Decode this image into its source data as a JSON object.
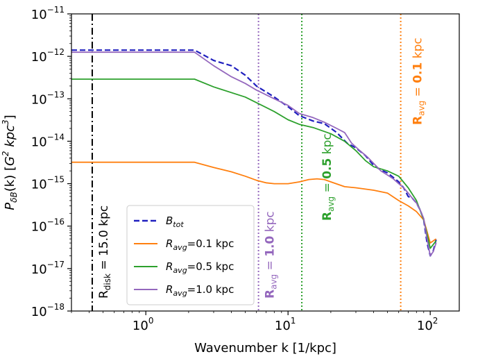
{
  "chart_data": {
    "type": "line",
    "xscale": "log",
    "yscale": "log",
    "xlim": [
      0.3,
      160
    ],
    "ylim": [
      1e-18,
      1e-11
    ],
    "xlabel": "Wavenumber k [1/kpc]",
    "ylabel": {
      "main": "P",
      "sub": "δB",
      "rest": "(k) [",
      "unit_a": "G",
      "unit_a_exp": "2",
      "unit_b": " kpc",
      "unit_b_exp": "3",
      "end": "]"
    },
    "x_ticks": [
      {
        "value": 1,
        "base": "10",
        "exp": "0"
      },
      {
        "value": 10,
        "base": "10",
        "exp": "1"
      },
      {
        "value": 100,
        "base": "10",
        "exp": "2"
      }
    ],
    "y_ticks": [
      {
        "value": 1e-11,
        "base": "10",
        "exp": "−11"
      },
      {
        "value": 1e-12,
        "base": "10",
        "exp": "−12"
      },
      {
        "value": 1e-13,
        "base": "10",
        "exp": "−13"
      },
      {
        "value": 1e-14,
        "base": "10",
        "exp": "−14"
      },
      {
        "value": 1e-15,
        "base": "10",
        "exp": "−15"
      },
      {
        "value": 1e-16,
        "base": "10",
        "exp": "−16"
      },
      {
        "value": 1e-17,
        "base": "10",
        "exp": "−17"
      },
      {
        "value": 1e-18,
        "base": "10",
        "exp": "−18"
      }
    ],
    "series": [
      {
        "name": "B_tot",
        "legend_main": "B",
        "legend_sub": "tot",
        "legend_rest": "",
        "color": "#1f1fbf",
        "dash": "8,4",
        "width": 2.2,
        "points": [
          [
            0.3,
            1.4e-12
          ],
          [
            2.2,
            1.4e-12
          ],
          [
            3,
            8e-13
          ],
          [
            4,
            6e-13
          ],
          [
            5,
            3.6e-13
          ],
          [
            6,
            2e-13
          ],
          [
            8,
            1.1e-13
          ],
          [
            10,
            6.5e-14
          ],
          [
            12,
            4e-14
          ],
          [
            15,
            3e-14
          ],
          [
            18,
            2.6e-14
          ],
          [
            22,
            1.6e-14
          ],
          [
            26,
            9e-15
          ],
          [
            30,
            7e-15
          ],
          [
            35,
            4.6e-15
          ],
          [
            40,
            2.7e-15
          ],
          [
            45,
            2.1e-15
          ],
          [
            50,
            1.8e-15
          ],
          [
            55,
            1.4e-15
          ],
          [
            60,
            1.1e-15
          ],
          [
            65,
            8e-16
          ],
          [
            70,
            5e-16
          ],
          [
            75,
            4.5e-16
          ],
          [
            80,
            3.5e-16
          ],
          [
            85,
            2.4e-16
          ],
          [
            90,
            1.4e-16
          ],
          [
            95,
            4e-17
          ],
          [
            100,
            2e-17
          ],
          [
            105,
            2.6e-17
          ],
          [
            110,
            4.8e-17
          ]
        ]
      },
      {
        "name": "R_avg=0.1 kpc",
        "legend_main": "R",
        "legend_sub": "avg",
        "legend_rest": "=0.1 kpc",
        "color": "#ff7f0e",
        "dash": "",
        "width": 1.8,
        "points": [
          [
            0.3,
            3.2e-15
          ],
          [
            2.2,
            3.2e-15
          ],
          [
            3,
            2.4e-15
          ],
          [
            4,
            1.9e-15
          ],
          [
            5,
            1.5e-15
          ],
          [
            6,
            1.2e-15
          ],
          [
            7,
            1.05e-15
          ],
          [
            8,
            1e-15
          ],
          [
            10,
            1e-15
          ],
          [
            12,
            1.1e-15
          ],
          [
            14,
            1.25e-15
          ],
          [
            16,
            1.3e-15
          ],
          [
            18,
            1.25e-15
          ],
          [
            20,
            1.1e-15
          ],
          [
            25,
            8.5e-16
          ],
          [
            30,
            8e-16
          ],
          [
            40,
            7e-16
          ],
          [
            50,
            6e-16
          ],
          [
            60,
            4e-16
          ],
          [
            70,
            3e-16
          ],
          [
            80,
            2.2e-16
          ],
          [
            90,
            1.4e-16
          ],
          [
            100,
            4e-17
          ],
          [
            110,
            5e-17
          ]
        ]
      },
      {
        "name": "R_avg=0.5 kpc",
        "legend_main": "R",
        "legend_sub": "avg",
        "legend_rest": "=0.5 kpc",
        "color": "#2ca02c",
        "dash": "",
        "width": 1.8,
        "points": [
          [
            0.3,
            2.9e-13
          ],
          [
            2.2,
            2.9e-13
          ],
          [
            3,
            1.9e-13
          ],
          [
            5,
            1.1e-13
          ],
          [
            8,
            5e-14
          ],
          [
            10,
            3.2e-14
          ],
          [
            12,
            2.5e-14
          ],
          [
            15,
            2.1e-14
          ],
          [
            20,
            1.5e-14
          ],
          [
            25,
            1e-14
          ],
          [
            30,
            6e-15
          ],
          [
            35,
            3.5e-15
          ],
          [
            40,
            2.5e-15
          ],
          [
            50,
            2e-15
          ],
          [
            60,
            1.5e-15
          ],
          [
            70,
            8e-16
          ],
          [
            80,
            4e-16
          ],
          [
            90,
            1.4e-16
          ],
          [
            100,
            3e-17
          ],
          [
            110,
            4.5e-17
          ]
        ]
      },
      {
        "name": "R_avg=1.0 kpc",
        "legend_main": "R",
        "legend_sub": "avg",
        "legend_rest": "=1.0 kpc",
        "color": "#9467bd",
        "dash": "",
        "width": 1.8,
        "points": [
          [
            0.3,
            1.25e-12
          ],
          [
            2.2,
            1.25e-12
          ],
          [
            3,
            6e-13
          ],
          [
            4,
            3.3e-13
          ],
          [
            5,
            2.3e-13
          ],
          [
            6,
            1.6e-13
          ],
          [
            8,
            1e-13
          ],
          [
            10,
            7e-14
          ],
          [
            12,
            4.5e-14
          ],
          [
            15,
            3.6e-14
          ],
          [
            18,
            2.8e-14
          ],
          [
            22,
            2e-14
          ],
          [
            25,
            1.6e-14
          ],
          [
            28,
            9e-15
          ],
          [
            32,
            6e-15
          ],
          [
            36,
            4.3e-15
          ],
          [
            40,
            3e-15
          ],
          [
            45,
            2e-15
          ],
          [
            50,
            1.6e-15
          ],
          [
            55,
            1.3e-15
          ],
          [
            60,
            1e-15
          ],
          [
            65,
            8e-16
          ],
          [
            70,
            6e-16
          ],
          [
            75,
            4.5e-16
          ],
          [
            80,
            3.5e-16
          ],
          [
            85,
            2.4e-16
          ],
          [
            90,
            1.5e-16
          ],
          [
            95,
            5e-17
          ],
          [
            100,
            2e-17
          ],
          [
            105,
            2.5e-17
          ],
          [
            110,
            4e-17
          ]
        ]
      }
    ],
    "vlines": [
      {
        "x": 0.42,
        "color": "#000000",
        "dash": "10,4,2,4",
        "label_main": "R",
        "label_sub": "disk",
        "label_rest": " = 15.0 kpc",
        "bold_value": false,
        "label_value": ""
      },
      {
        "x": 6.2,
        "color": "#9467bd",
        "dash": "2,3",
        "label_main": "R",
        "label_sub": "avg",
        "label_rest": " = ",
        "bold_value": true,
        "label_value": "1.0",
        "label_unit": " kpc"
      },
      {
        "x": 12.5,
        "color": "#2ca02c",
        "dash": "2,3",
        "label_main": "R",
        "label_sub": "avg",
        "label_rest": " = ",
        "bold_value": true,
        "label_value": "0.5",
        "label_unit": " kpc"
      },
      {
        "x": 62,
        "color": "#ff7f0e",
        "dash": "2,3",
        "label_main": "R",
        "label_sub": "avg",
        "label_rest": " = ",
        "bold_value": true,
        "label_value": "0.1",
        "label_unit": " kpc"
      }
    ],
    "legend": {
      "position": "lower-left"
    }
  }
}
